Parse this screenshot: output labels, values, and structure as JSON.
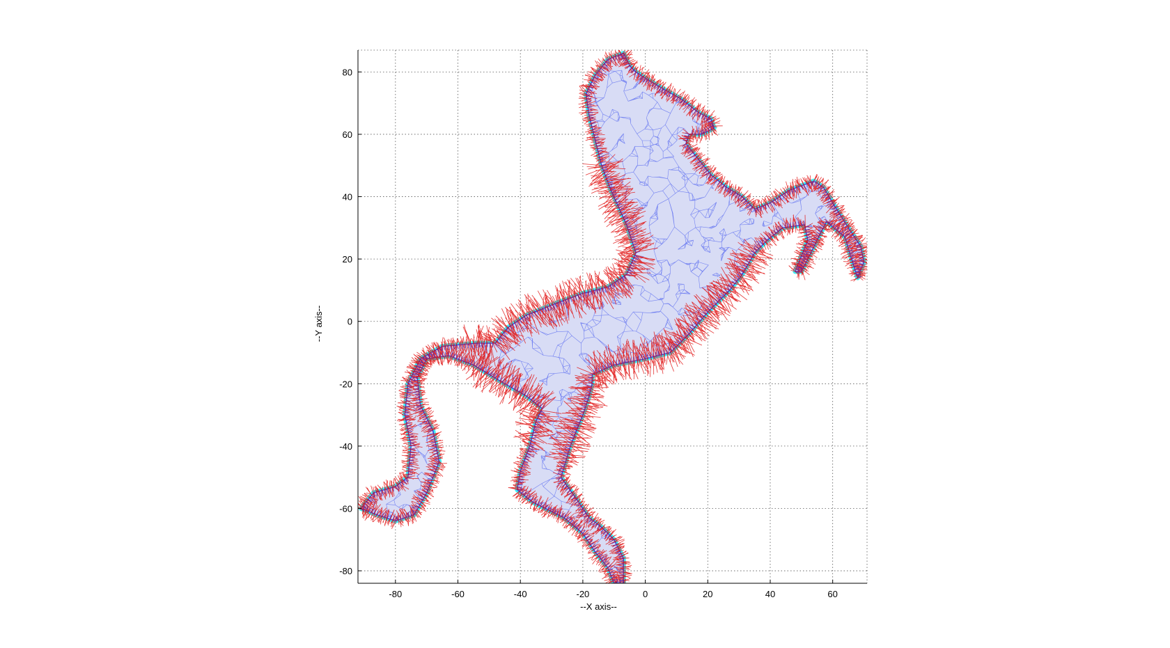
{
  "chart_data": {
    "type": "scatter",
    "description_visible": "Rearing horse shape drawn as a triangulated mesh with dense normal vectors along its boundary",
    "xlabel": "--X axis--",
    "ylabel": "--Y axis--",
    "xlim": [
      -92,
      71
    ],
    "ylim": [
      -84,
      87
    ],
    "x_ticks": [
      -80,
      -60,
      -40,
      -20,
      0,
      20,
      40,
      60
    ],
    "y_ticks": [
      80,
      60,
      40,
      20,
      0,
      -20,
      -40,
      -60,
      -80
    ],
    "grid": true,
    "grid_style": "dotted",
    "colors": {
      "boundary_fill": "#d8dcf5",
      "halo": "#00e5ee",
      "mesh": "#5a6cf0",
      "mesh_dark": "#2a2ad0",
      "normals": "#e01010"
    },
    "outline": [
      [
        -7,
        86
      ],
      [
        -6,
        84
      ],
      [
        -5,
        82
      ],
      [
        -3,
        80
      ],
      [
        0,
        78
      ],
      [
        5,
        75
      ],
      [
        12,
        71
      ],
      [
        17,
        67
      ],
      [
        21,
        65
      ],
      [
        22,
        62
      ],
      [
        18,
        60
      ],
      [
        14,
        60
      ],
      [
        13,
        57
      ],
      [
        17,
        52
      ],
      [
        21,
        47
      ],
      [
        26,
        43
      ],
      [
        31,
        40
      ],
      [
        35,
        36
      ],
      [
        40,
        38
      ],
      [
        46,
        42
      ],
      [
        54,
        45
      ],
      [
        57,
        43
      ],
      [
        60,
        38
      ],
      [
        65,
        30
      ],
      [
        69,
        24
      ],
      [
        70,
        19
      ],
      [
        68,
        14
      ],
      [
        66,
        20
      ],
      [
        64,
        27
      ],
      [
        58,
        32
      ],
      [
        56,
        28
      ],
      [
        53,
        22
      ],
      [
        50,
        16
      ],
      [
        48,
        16
      ],
      [
        50,
        21
      ],
      [
        52,
        26
      ],
      [
        51,
        31
      ],
      [
        44,
        30
      ],
      [
        39,
        26
      ],
      [
        35,
        22
      ],
      [
        31,
        15
      ],
      [
        27,
        10
      ],
      [
        20,
        3
      ],
      [
        14,
        -4
      ],
      [
        8,
        -10
      ],
      [
        0,
        -12
      ],
      [
        -10,
        -14
      ],
      [
        -17,
        -17
      ],
      [
        -17,
        -20
      ],
      [
        -18,
        -24
      ],
      [
        -20,
        -30
      ],
      [
        -24,
        -40
      ],
      [
        -27,
        -50
      ],
      [
        -22,
        -57
      ],
      [
        -18,
        -63
      ],
      [
        -14,
        -66
      ],
      [
        -10,
        -70
      ],
      [
        -7,
        -76
      ],
      [
        -7,
        -84
      ],
      [
        -10,
        -84
      ],
      [
        -12,
        -79
      ],
      [
        -16,
        -74
      ],
      [
        -20,
        -68
      ],
      [
        -26,
        -63
      ],
      [
        -32,
        -60
      ],
      [
        -36,
        -58
      ],
      [
        -41,
        -54
      ],
      [
        -40,
        -48
      ],
      [
        -37,
        -40
      ],
      [
        -35,
        -32
      ],
      [
        -33,
        -28
      ],
      [
        -38,
        -24
      ],
      [
        -45,
        -20
      ],
      [
        -55,
        -14
      ],
      [
        -63,
        -11
      ],
      [
        -70,
        -12
      ],
      [
        -73,
        -18
      ],
      [
        -72,
        -27
      ],
      [
        -68,
        -35
      ],
      [
        -66,
        -45
      ],
      [
        -70,
        -55
      ],
      [
        -74,
        -62
      ],
      [
        -80,
        -64
      ],
      [
        -86,
        -62
      ],
      [
        -91,
        -60
      ],
      [
        -87,
        -55
      ],
      [
        -80,
        -53
      ],
      [
        -76,
        -50
      ],
      [
        -75,
        -40
      ],
      [
        -77,
        -30
      ],
      [
        -76,
        -20
      ],
      [
        -72,
        -12
      ],
      [
        -65,
        -8
      ],
      [
        -54,
        -7
      ],
      [
        -48,
        -7
      ],
      [
        -44,
        -2
      ],
      [
        -38,
        2
      ],
      [
        -28,
        6
      ],
      [
        -20,
        9
      ],
      [
        -12,
        11
      ],
      [
        -6,
        15
      ],
      [
        -3,
        22
      ],
      [
        -6,
        31
      ],
      [
        -11,
        42
      ],
      [
        -14,
        50
      ],
      [
        -16,
        58
      ],
      [
        -18,
        66
      ],
      [
        -19,
        73
      ],
      [
        -16,
        79
      ],
      [
        -12,
        84
      ]
    ]
  }
}
